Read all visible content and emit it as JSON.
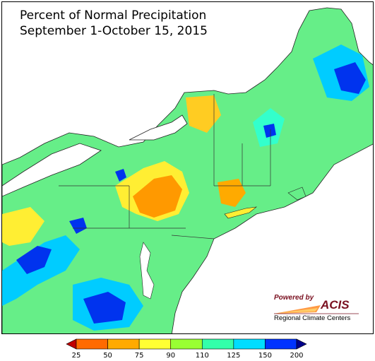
{
  "title_line1": "Percent of Normal Precipitation",
  "title_line2": "September 1-October 15, 2015",
  "logo": {
    "powered_by": "Powered by",
    "acis": "ACIS",
    "rcc": "Regional Climate Centers"
  },
  "legend": {
    "ticks": [
      "25",
      "50",
      "75",
      "90",
      "110",
      "125",
      "150",
      "200"
    ],
    "colors": [
      "#c00000",
      "#ff6a00",
      "#ffaa00",
      "#ffff33",
      "#99ff33",
      "#33ffaa",
      "#00ddff",
      "#0033ff",
      "#00008b"
    ]
  },
  "map_colors": {
    "land_base": "#66ee88",
    "water_background": "#ffffff",
    "dry": "#ffaa00",
    "very_dry": "#ff7700",
    "normal": "#ffee33",
    "slightly_wet": "#aaff44",
    "wet": "#33ffcc",
    "very_wet": "#00ccff",
    "extreme_wet": "#0033ee",
    "deep_wet": "#000099"
  }
}
